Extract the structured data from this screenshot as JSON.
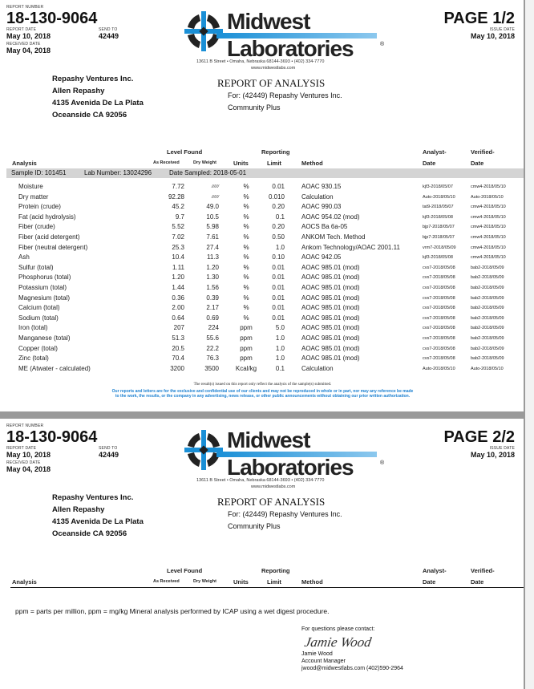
{
  "header": {
    "report_number_label": "REPORT NUMBER",
    "report_number": "18-130-9064",
    "report_date_label": "REPORT DATE",
    "report_date": "May 10, 2018",
    "send_to_label": "SEND TO",
    "send_to": "42449",
    "received_date_label": "RECEIVED DATE",
    "received_date": "May 04, 2018",
    "issue_date_label": "ISSUE DATE",
    "issue_date": "May 10, 2018",
    "logo": {
      "line1": "Midwest",
      "line2": "Laboratories",
      "registered": "®",
      "address": "13611 B Street • Omaha, Nebraska 68144-3693 • (402) 334-7770",
      "website": "www.midwestlabs.com",
      "colors": {
        "blue": "#1a8fd6",
        "dark": "#222222"
      }
    },
    "customer": [
      "Repashy Ventures Inc.",
      "Allen Repashy",
      "4135 Avenida De La Plata",
      "Oceanside CA 92056"
    ],
    "report_title": "REPORT OF ANALYSIS",
    "for_line": "For: (42449) Repashy Ventures Inc.",
    "product": "Community Plus"
  },
  "pages": [
    {
      "label": "PAGE 1/2"
    },
    {
      "label": "PAGE 2/2"
    }
  ],
  "columns": {
    "analysis": "Analysis",
    "level_found": "Level Found",
    "as_received": "As Received",
    "dry_weight": "Dry Weight",
    "units": "Units",
    "reporting": "Reporting",
    "limit": "Limit",
    "method": "Method",
    "analyst": "Analyst-",
    "analyst2": "Date",
    "verified": "Verified-",
    "verified2": "Date"
  },
  "sample": {
    "sample_id": "Sample ID: 101451",
    "lab_number": "Lab Number: 13024296",
    "date_sampled": "Date Sampled: 2018-05-01"
  },
  "rows": [
    [
      "Moisture",
      "7.72",
      "//////",
      "%",
      "0.01",
      "AOAC 930.15",
      "kjf3-2018/05/07",
      "cmw4-2018/05/10"
    ],
    [
      "Dry matter",
      "92.28",
      "//////",
      "%",
      "0.010",
      "Calculation",
      "Auto-2018/05/10",
      "Auto-2018/05/10"
    ],
    [
      "Protein (crude)",
      "45.2",
      "49.0",
      "%",
      "0.20",
      "AOAC 990.03",
      "tat9-2018/05/07",
      "cmw4-2018/05/10"
    ],
    [
      "Fat (acid hydrolysis)",
      "9.7",
      "10.5",
      "%",
      "0.1",
      "AOAC 954.02 (mod)",
      "kjf3-2018/05/08",
      "cmw4-2018/05/10"
    ],
    [
      "Fiber (crude)",
      "5.52",
      "5.98",
      "%",
      "0.20",
      "AOCS Ba 6a-05",
      "bjp7-2018/05/07",
      "cmw4-2018/05/10"
    ],
    [
      "Fiber (acid detergent)",
      "7.02",
      "7.61",
      "%",
      "0.50",
      "ANKOM Tech. Method",
      "bjp7-2018/05/07",
      "cmw4-2018/05/10"
    ],
    [
      "Fiber (neutral detergent)",
      "25.3",
      "27.4",
      "%",
      "1.0",
      "Ankom Technology/AOAC 2001.11",
      "vrm7-2018/05/09",
      "cmw4-2018/05/10"
    ],
    [
      "Ash",
      "10.4",
      "11.3",
      "%",
      "0.10",
      "AOAC 942.05",
      "kjf3-2018/05/08",
      "cmw4-2018/05/10"
    ],
    [
      "Sulfur (total)",
      "1.11",
      "1.20",
      "%",
      "0.01",
      "AOAC 985.01 (mod)",
      "cvs7-2018/05/08",
      "bab2-2018/05/09"
    ],
    [
      "Phosphorus (total)",
      "1.20",
      "1.30",
      "%",
      "0.01",
      "AOAC 985.01 (mod)",
      "cvs7-2018/05/08",
      "bab2-2018/05/09"
    ],
    [
      "Potassium (total)",
      "1.44",
      "1.56",
      "%",
      "0.01",
      "AOAC 985.01 (mod)",
      "cvs7-2018/05/08",
      "bab2-2018/05/09"
    ],
    [
      "Magnesium (total)",
      "0.36",
      "0.39",
      "%",
      "0.01",
      "AOAC 985.01 (mod)",
      "cvs7-2018/05/08",
      "bab2-2018/05/09"
    ],
    [
      "Calcium (total)",
      "2.00",
      "2.17",
      "%",
      "0.01",
      "AOAC 985.01 (mod)",
      "cvs7-2018/05/08",
      "bab2-2018/05/09"
    ],
    [
      "Sodium (total)",
      "0.64",
      "0.69",
      "%",
      "0.01",
      "AOAC 985.01 (mod)",
      "cvs7-2018/05/08",
      "bab2-2018/05/09"
    ],
    [
      "Iron (total)",
      "207",
      "224",
      "ppm",
      "5.0",
      "AOAC 985.01 (mod)",
      "cvs7-2018/05/08",
      "bab2-2018/05/09"
    ],
    [
      "Manganese (total)",
      "51.3",
      "55.6",
      "ppm",
      "1.0",
      "AOAC 985.01 (mod)",
      "cvs7-2018/05/08",
      "bab2-2018/05/09"
    ],
    [
      "Copper (total)",
      "20.5",
      "22.2",
      "ppm",
      "1.0",
      "AOAC 985.01 (mod)",
      "cvs7-2018/05/08",
      "bab2-2018/05/09"
    ],
    [
      "Zinc (total)",
      "70.4",
      "76.3",
      "ppm",
      "1.0",
      "AOAC 985.01 (mod)",
      "cvs7-2018/05/08",
      "bab2-2018/05/09"
    ],
    [
      "ME (Atwater - calculated)",
      "3200",
      "3500",
      "Kcal/kg",
      "0.1",
      "Calculation",
      "Auto-2018/05/10",
      "Auto-2018/05/10"
    ]
  ],
  "footer": {
    "note1": "The result(s) issued on this report only reflect the analysis of the sample(s) submitted.",
    "note2a": "Our reports and letters are for the exclusive and confidential use of our clients and may not be reproduced in whole or in part, nor may any reference be made",
    "note2b": "to the work, the results, or the company in any advertising, news release, or other public announcements without obtaining our prior written authorization."
  },
  "page2": {
    "ppm_note": "ppm = parts per million, ppm = mg/kg  Mineral analysis performed by ICAP using a wet digest procedure.",
    "contact_label": "For questions please contact:",
    "signature": "Jamie Wood",
    "contact_name": "Jamie Wood",
    "contact_title": "Account Manager",
    "contact_info": "jwood@midwestlabs.com (402)590-2964"
  }
}
